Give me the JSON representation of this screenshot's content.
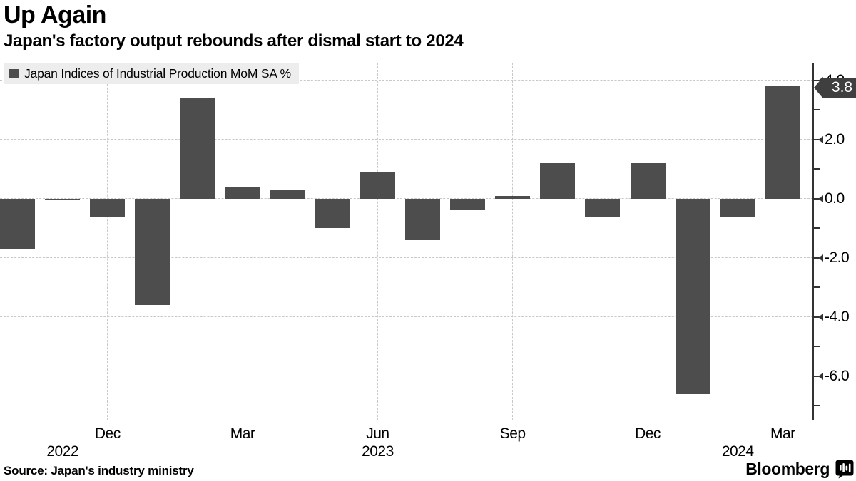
{
  "header": {
    "title": "Up Again",
    "subtitle": "Japan's factory output rebounds after dismal start to 2024"
  },
  "legend": {
    "label": "Japan Indices of Industrial Production MoM SA %"
  },
  "badge": {
    "label": "3.8"
  },
  "footer": {
    "source": "Source: Japan's industry ministry",
    "brand": "Bloomberg"
  },
  "colors": {
    "bar": "#4d4d4d",
    "badge_bg": "#3f3f3f",
    "badge_text": "#ffffff",
    "grid": "#c8c8c8",
    "axis": "#333333",
    "legend_bg": "#ededed",
    "text": "#000000"
  },
  "chart_data": {
    "type": "bar",
    "title": "Up Again",
    "subtitle": "Japan's factory output rebounds after dismal start to 2024",
    "series_name": "Japan Indices of Industrial Production MoM SA %",
    "unit": "MoM SA %",
    "x": [
      "Oct 2022",
      "Nov 2022",
      "Dec 2022",
      "Jan 2023",
      "Feb 2023",
      "Mar 2023",
      "Apr 2023",
      "May 2023",
      "Jun 2023",
      "Jul 2023",
      "Aug 2023",
      "Sep 2023",
      "Oct 2023",
      "Nov 2023",
      "Dec 2023",
      "Jan 2024",
      "Feb 2024",
      "Mar 2024"
    ],
    "values": [
      -1.7,
      0.0,
      -0.6,
      -3.6,
      3.4,
      0.4,
      0.3,
      -1.0,
      0.9,
      -1.4,
      -0.4,
      0.1,
      1.2,
      -0.6,
      1.2,
      -6.6,
      -0.6,
      3.8
    ],
    "last_value_label": "3.8",
    "ylim": [
      -7.5,
      4.6
    ],
    "y_major_ticks": [
      4.0,
      2.0,
      0.0,
      -2.0,
      -4.0,
      -6.0
    ],
    "y_tick_labels": [
      "4.0",
      "2.0",
      "0.0",
      "-2.0",
      "-4.0",
      "-6.0"
    ],
    "y_minor_ticks": [
      3.0,
      1.0,
      -1.0,
      -3.0,
      -5.0,
      -7.0
    ],
    "x_ticks": [
      {
        "index": 2,
        "label": "Dec"
      },
      {
        "index": 5,
        "label": "Mar"
      },
      {
        "index": 8,
        "label": "Jun"
      },
      {
        "index": 11,
        "label": "Sep"
      },
      {
        "index": 14,
        "label": "Dec"
      },
      {
        "index": 17,
        "label": "Mar"
      }
    ],
    "year_labels": [
      {
        "index": 1,
        "label": "2022"
      },
      {
        "index": 8,
        "label": "2023"
      },
      {
        "index": 16,
        "label": "2024"
      }
    ],
    "grid": true,
    "legend_position": "top-left",
    "yaxis_side": "right"
  }
}
